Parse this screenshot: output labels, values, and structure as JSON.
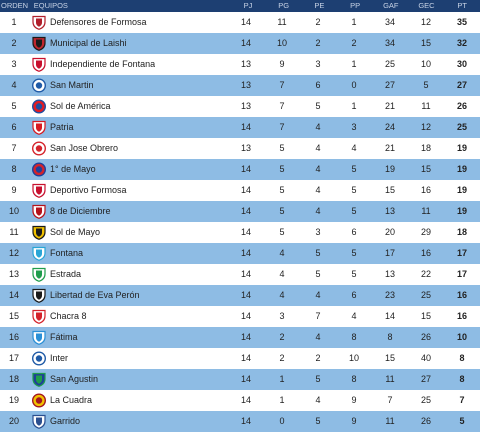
{
  "headers": {
    "pos": "ORDEN",
    "team": "EQUIPOS",
    "pj": "PJ",
    "pg": "PG",
    "pe": "PE",
    "pp": "PP",
    "gaf": "GAF",
    "gec": "GEC",
    "pt": "PT"
  },
  "rows": [
    {
      "pos": "1",
      "team": "Defensores de Formosa",
      "pj": "14",
      "pg": "11",
      "pe": "2",
      "pp": "1",
      "gaf": "34",
      "gec": "12",
      "pt": "35",
      "crest": {
        "icon": "shield-crest-icon",
        "primary": "#b11f2b",
        "secondary": "#ffffff"
      }
    },
    {
      "pos": "2",
      "team": "Municipal de Laishi",
      "pj": "14",
      "pg": "10",
      "pe": "2",
      "pp": "2",
      "gaf": "34",
      "gec": "15",
      "pt": "32",
      "crest": {
        "icon": "shield-crest-icon",
        "primary": "#1a1a1a",
        "secondary": "#c0262e"
      }
    },
    {
      "pos": "3",
      "team": "Independiente de Fontana",
      "pj": "13",
      "pg": "9",
      "pe": "3",
      "pp": "1",
      "gaf": "25",
      "gec": "10",
      "pt": "30",
      "crest": {
        "icon": "shield-crest-icon",
        "primary": "#c8102e",
        "secondary": "#ffffff"
      }
    },
    {
      "pos": "4",
      "team": "San Martin",
      "pj": "13",
      "pg": "7",
      "pe": "6",
      "pp": "0",
      "gaf": "27",
      "gec": "5",
      "pt": "27",
      "crest": {
        "icon": "round-crest-icon",
        "primary": "#1f5aa6",
        "secondary": "#ffffff"
      }
    },
    {
      "pos": "5",
      "team": "Sol de América",
      "pj": "13",
      "pg": "7",
      "pe": "5",
      "pp": "1",
      "gaf": "21",
      "gec": "11",
      "pt": "26",
      "crest": {
        "icon": "round-crest-icon",
        "primary": "#1e4ea1",
        "secondary": "#e21b23"
      }
    },
    {
      "pos": "6",
      "team": "Patria",
      "pj": "14",
      "pg": "7",
      "pe": "4",
      "pp": "3",
      "gaf": "24",
      "gec": "12",
      "pt": "25",
      "crest": {
        "icon": "shield-crest-icon",
        "primary": "#d71a21",
        "secondary": "#ffffff"
      }
    },
    {
      "pos": "7",
      "team": "San Jose Obrero",
      "pj": "13",
      "pg": "5",
      "pe": "4",
      "pp": "4",
      "gaf": "21",
      "gec": "18",
      "pt": "19",
      "crest": {
        "icon": "round-crest-icon",
        "primary": "#d4232b",
        "secondary": "#ffffff"
      }
    },
    {
      "pos": "8",
      "team": "1° de Mayo",
      "pj": "14",
      "pg": "5",
      "pe": "4",
      "pp": "5",
      "gaf": "19",
      "gec": "15",
      "pt": "19",
      "crest": {
        "icon": "round-crest-icon",
        "primary": "#1f3f9a",
        "secondary": "#d4232b"
      }
    },
    {
      "pos": "9",
      "team": "Deportivo Formosa",
      "pj": "14",
      "pg": "5",
      "pe": "4",
      "pp": "5",
      "gaf": "15",
      "gec": "16",
      "pt": "19",
      "crest": {
        "icon": "shield-crest-icon",
        "primary": "#c8102e",
        "secondary": "#ffffff"
      }
    },
    {
      "pos": "10",
      "team": "8 de Diciembre",
      "pj": "14",
      "pg": "5",
      "pe": "4",
      "pp": "5",
      "gaf": "13",
      "gec": "11",
      "pt": "19",
      "crest": {
        "icon": "shield-crest-icon",
        "primary": "#b5121b",
        "secondary": "#ffffff"
      }
    },
    {
      "pos": "11",
      "team": "Sol de Mayo",
      "pj": "14",
      "pg": "5",
      "pe": "3",
      "pp": "6",
      "gaf": "20",
      "gec": "29",
      "pt": "18",
      "crest": {
        "icon": "shield-crest-icon",
        "primary": "#1a1a1a",
        "secondary": "#f2c200"
      }
    },
    {
      "pos": "12",
      "team": "Fontana",
      "pj": "14",
      "pg": "4",
      "pe": "5",
      "pp": "5",
      "gaf": "17",
      "gec": "16",
      "pt": "17",
      "crest": {
        "icon": "shield-crest-icon",
        "primary": "#2aa6d6",
        "secondary": "#ffffff"
      }
    },
    {
      "pos": "13",
      "team": "Estrada",
      "pj": "14",
      "pg": "4",
      "pe": "5",
      "pp": "5",
      "gaf": "13",
      "gec": "22",
      "pt": "17",
      "crest": {
        "icon": "shield-crest-icon",
        "primary": "#1f9d4c",
        "secondary": "#ffffff"
      }
    },
    {
      "pos": "14",
      "team": "Libertad de Eva Perón",
      "pj": "14",
      "pg": "4",
      "pe": "4",
      "pp": "6",
      "gaf": "23",
      "gec": "25",
      "pt": "16",
      "crest": {
        "icon": "shield-crest-icon",
        "primary": "#1a1a1a",
        "secondary": "#ffffff"
      }
    },
    {
      "pos": "15",
      "team": "Chacra 8",
      "pj": "14",
      "pg": "3",
      "pe": "7",
      "pp": "4",
      "gaf": "14",
      "gec": "15",
      "pt": "16",
      "crest": {
        "icon": "shield-crest-icon",
        "primary": "#d4232b",
        "secondary": "#ffffff"
      }
    },
    {
      "pos": "16",
      "team": "Fátima",
      "pj": "14",
      "pg": "2",
      "pe": "4",
      "pp": "8",
      "gaf": "8",
      "gec": "26",
      "pt": "10",
      "crest": {
        "icon": "shield-crest-icon",
        "primary": "#2a8fd6",
        "secondary": "#ffffff"
      }
    },
    {
      "pos": "17",
      "team": "Inter",
      "pj": "14",
      "pg": "2",
      "pe": "2",
      "pp": "10",
      "gaf": "15",
      "gec": "40",
      "pt": "8",
      "crest": {
        "icon": "round-crest-icon",
        "primary": "#1f5aa6",
        "secondary": "#ffffff"
      }
    },
    {
      "pos": "18",
      "team": "San Agustin",
      "pj": "14",
      "pg": "1",
      "pe": "5",
      "pp": "8",
      "gaf": "11",
      "gec": "27",
      "pt": "8",
      "crest": {
        "icon": "shield-crest-icon",
        "primary": "#1f9d4c",
        "secondary": "#1f3f9a"
      }
    },
    {
      "pos": "19",
      "team": "La Cuadra",
      "pj": "14",
      "pg": "1",
      "pe": "4",
      "pp": "9",
      "gaf": "7",
      "gec": "25",
      "pt": "7",
      "crest": {
        "icon": "round-crest-icon",
        "primary": "#a31621",
        "secondary": "#f2c200"
      }
    },
    {
      "pos": "20",
      "team": "Garrido",
      "pj": "14",
      "pg": "0",
      "pe": "5",
      "pp": "9",
      "gaf": "11",
      "gec": "26",
      "pt": "5",
      "crest": {
        "icon": "shield-crest-icon",
        "primary": "#2b4f8f",
        "secondary": "#ffffff"
      }
    }
  ]
}
